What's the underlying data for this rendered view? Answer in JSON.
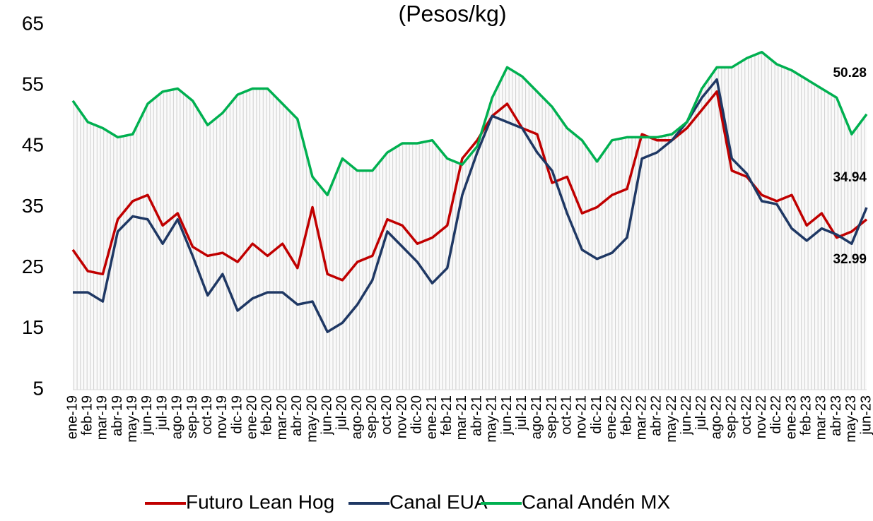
{
  "chart_data": {
    "type": "line",
    "title": "(Pesos/kg)",
    "categories": [
      "ene-19",
      "feb-19",
      "mar-19",
      "abr-19",
      "may-19",
      "jun-19",
      "jul-19",
      "ago-19",
      "sep-19",
      "oct-19",
      "nov-19",
      "dic-19",
      "ene-20",
      "feb-20",
      "mar-20",
      "abr-20",
      "may-20",
      "jun-20",
      "jul-20",
      "ago-20",
      "sep-20",
      "oct-20",
      "nov-20",
      "dic-20",
      "ene-21",
      "feb-21",
      "mar-21",
      "abr-21",
      "may-21",
      "jun-21",
      "jul-21",
      "ago-21",
      "sep-21",
      "oct-21",
      "nov-21",
      "dic-21",
      "ene-22",
      "feb-22",
      "mar-22",
      "abr-22",
      "may-22",
      "jun-22",
      "jul-22",
      "ago-22",
      "sep-22",
      "oct-22",
      "nov-22",
      "dic-22",
      "ene-23",
      "feb-23",
      "mar-23",
      "abr-23",
      "may-23",
      "jun-23"
    ],
    "series": [
      {
        "name": "Futuro Lean Hog",
        "color": "#c00000",
        "values": [
          28,
          24.5,
          24,
          33,
          36,
          37,
          32,
          34,
          28.5,
          27,
          27.5,
          26,
          29,
          27,
          29,
          25,
          35,
          24,
          23,
          26,
          27,
          33,
          32,
          29,
          30,
          32,
          43,
          46,
          50,
          52,
          48,
          47,
          39,
          40,
          34,
          35,
          37,
          38,
          47,
          46,
          46,
          48,
          51,
          54,
          41,
          40,
          37,
          36,
          37,
          32,
          34,
          30,
          31,
          32.99
        ]
      },
      {
        "name": "Canal EUA",
        "color": "#1f3864",
        "values": [
          21,
          21,
          19.5,
          31,
          33.5,
          33,
          29,
          33,
          27,
          20.5,
          24,
          18,
          20,
          21,
          21,
          19,
          19.5,
          14.5,
          16,
          19,
          23,
          31,
          28.5,
          26,
          22.5,
          25,
          37,
          44,
          50,
          49,
          48,
          44,
          41,
          34,
          28,
          26.5,
          27.5,
          30,
          43,
          44,
          46,
          49,
          53,
          56,
          43,
          40.5,
          36,
          35.5,
          31.5,
          29.5,
          31.5,
          30.5,
          29,
          34.94
        ]
      },
      {
        "name": "Canal Andén MX",
        "color": "#00b050",
        "values": [
          52.5,
          49,
          48,
          46.5,
          47,
          52,
          54,
          54.5,
          52.5,
          48.5,
          50.5,
          53.5,
          54.5,
          54.5,
          52,
          49.5,
          40,
          37,
          43,
          41,
          41,
          44,
          45.5,
          45.5,
          46,
          43,
          42,
          45,
          53,
          58,
          56.5,
          54,
          51.5,
          48,
          46,
          42.5,
          46,
          46.5,
          46.5,
          46.5,
          47,
          49,
          54.5,
          58,
          58,
          59.5,
          60.5,
          58.5,
          57.5,
          56,
          54.5,
          53,
          47,
          50.28
        ]
      }
    ],
    "ylim": [
      5,
      65
    ],
    "yticks": [
      5,
      15,
      25,
      35,
      45,
      55,
      65
    ],
    "legend": "bottom"
  }
}
